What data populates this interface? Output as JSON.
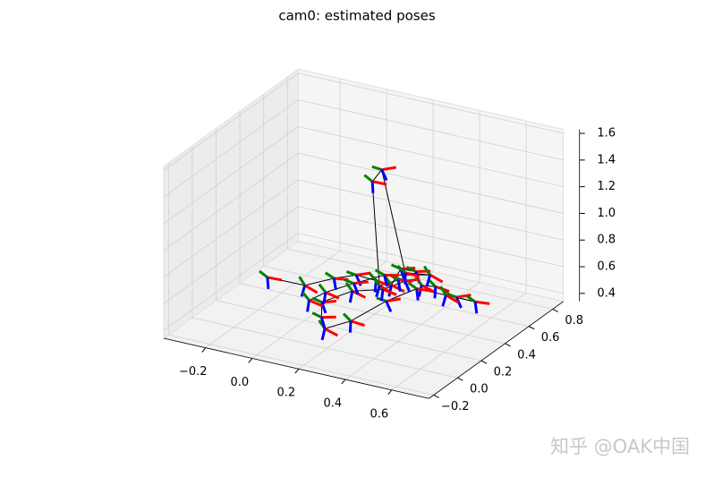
{
  "chart_data": {
    "type": "pose3d",
    "title": "cam0: estimated poses",
    "x": [
      -0.19,
      -0.05,
      0.05,
      0.12,
      0.18,
      0.22,
      0.25,
      0.3,
      0.35,
      0.42,
      0.5,
      0.57,
      0.48,
      0.38,
      0.3,
      0.25,
      0.2,
      0.15,
      0.1,
      0.18,
      0.26,
      0.32,
      0.28,
      0.22,
      0.22,
      0.24,
      0.3,
      0.36,
      0.2,
      0.12,
      0.05,
      0.02
    ],
    "y": [
      0.26,
      0.3,
      0.35,
      0.4,
      0.45,
      0.5,
      0.52,
      0.55,
      0.5,
      0.48,
      0.5,
      0.52,
      0.45,
      0.4,
      0.3,
      0.1,
      -0.02,
      0.05,
      0.15,
      0.25,
      0.35,
      0.42,
      0.44,
      0.4,
      0.34,
      0.38,
      0.46,
      0.55,
      0.48,
      0.38,
      0.28,
      0.2
    ],
    "z": [
      0.55,
      0.52,
      0.58,
      0.6,
      0.55,
      0.5,
      0.62,
      0.6,
      0.55,
      0.58,
      0.52,
      0.5,
      0.56,
      0.6,
      0.54,
      0.5,
      0.5,
      0.52,
      0.55,
      0.6,
      0.58,
      0.62,
      0.6,
      0.56,
      1.38,
      1.45,
      0.65,
      0.6,
      0.58,
      0.55,
      0.52,
      0.5
    ],
    "axis_colors": [
      "red",
      "green",
      "blue"
    ],
    "line_color": "black",
    "xlim": [
      -0.38,
      0.76
    ],
    "ylim": [
      -0.24,
      0.89
    ],
    "zlim": [
      0.34,
      1.63
    ],
    "xticks": [
      {
        "value": -0.2,
        "label": "−0.2"
      },
      {
        "value": 0,
        "label": "0.0"
      },
      0.2,
      0.4,
      0.6
    ],
    "yticks": [
      {
        "value": -0.2,
        "label": "−0.2"
      },
      {
        "value": 0,
        "label": "0.0"
      },
      0.2,
      0.4,
      0.6,
      0.8
    ],
    "zticks": [
      0.4,
      0.6,
      0.8,
      {
        "value": 1,
        "label": "1.0"
      },
      1.2,
      1.4,
      1.6
    ],
    "grid": true,
    "watermark": "知乎 @OAK中国"
  }
}
